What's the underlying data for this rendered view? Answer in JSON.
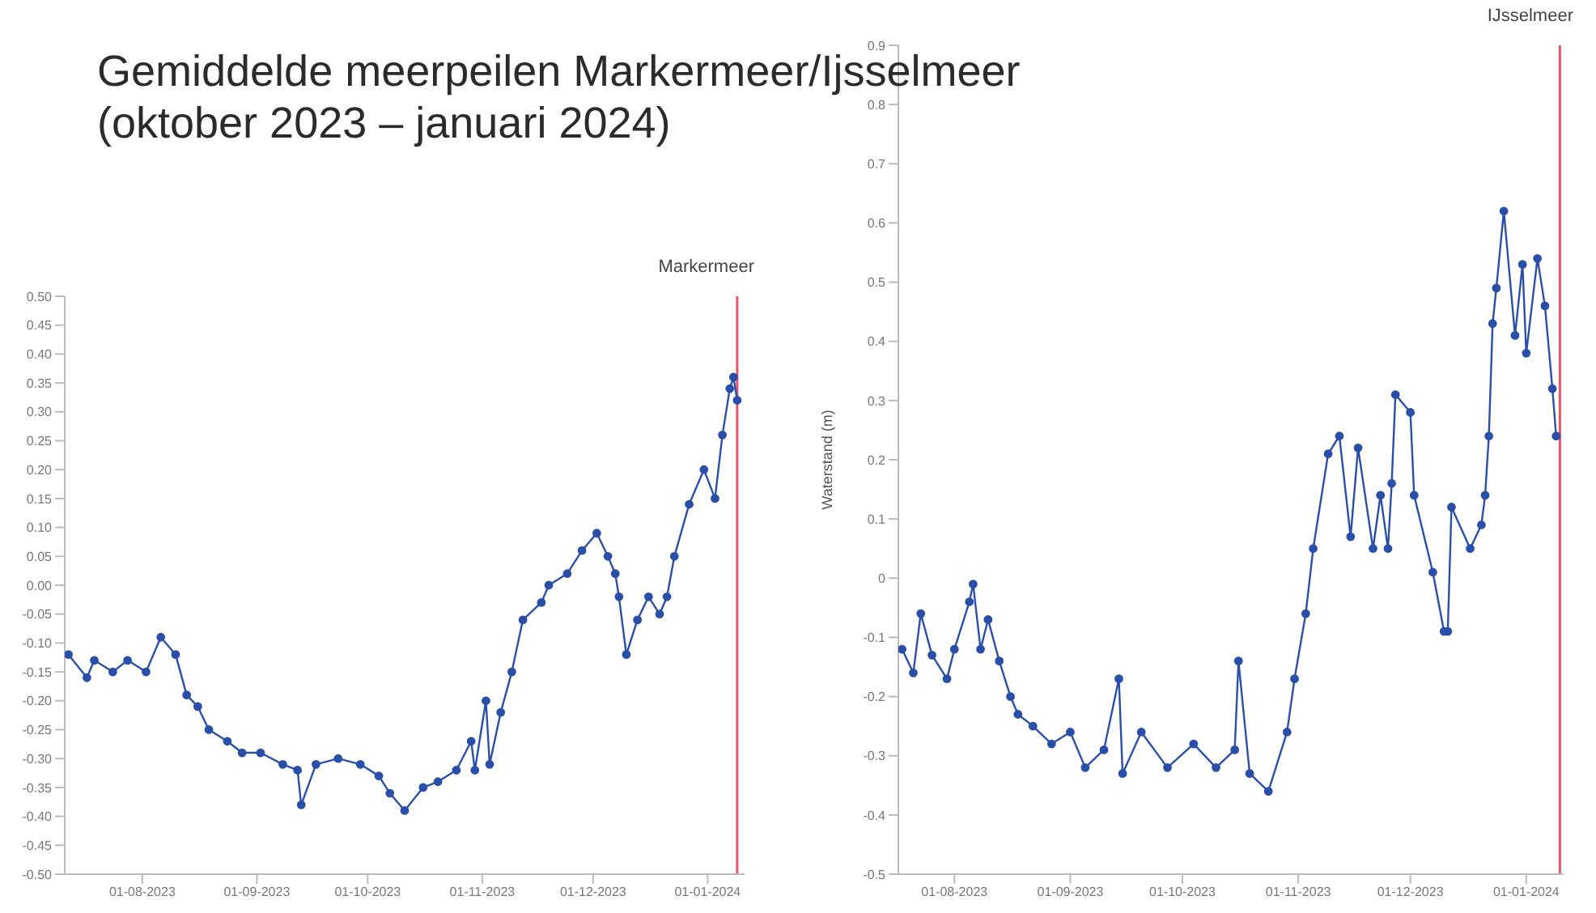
{
  "chart_data": [
    {
      "type": "line",
      "title": "Gemiddelde meerpeilen Markermeer/Ijsselmeer (oktober 2023 – januari 2024)",
      "subtitle": "Markermeer",
      "marker": "circle",
      "xlim": [
        "2023-07-11",
        "2024-01-11"
      ],
      "xticks": [
        {
          "value": "2023-08-01",
          "label": "01-08-2023"
        },
        {
          "value": "2023-09-01",
          "label": "01-09-2023"
        },
        {
          "value": "2023-10-01",
          "label": "01-10-2023"
        },
        {
          "value": "2023-11-01",
          "label": "01-11-2023"
        },
        {
          "value": "2023-12-01",
          "label": "01-12-2023"
        },
        {
          "value": "2024-01-01",
          "label": "01-01-2024"
        }
      ],
      "ylim": [
        -0.5,
        0.5
      ],
      "yticks": [
        {
          "value": -0.5,
          "label": "-0.50"
        },
        {
          "value": -0.45,
          "label": "-0.45"
        },
        {
          "value": -0.4,
          "label": "-0.40"
        },
        {
          "value": -0.35,
          "label": "-0.35"
        },
        {
          "value": -0.3,
          "label": "-0.30"
        },
        {
          "value": -0.25,
          "label": "-0.25"
        },
        {
          "value": -0.2,
          "label": "-0.20"
        },
        {
          "value": -0.15,
          "label": "-0.15"
        },
        {
          "value": -0.1,
          "label": "-0.10"
        },
        {
          "value": -0.05,
          "label": "-0.05"
        },
        {
          "value": 0,
          "label": "0.00"
        },
        {
          "value": 0.05,
          "label": "0.05"
        },
        {
          "value": 0.1,
          "label": "0.10"
        },
        {
          "value": 0.15,
          "label": "0.15"
        },
        {
          "value": 0.2,
          "label": "0.20"
        },
        {
          "value": 0.25,
          "label": "0.25"
        },
        {
          "value": 0.3,
          "label": "0.30"
        },
        {
          "value": 0.35,
          "label": "0.35"
        },
        {
          "value": 0.4,
          "label": "0.40"
        },
        {
          "value": 0.45,
          "label": "0.45"
        },
        {
          "value": 0.5,
          "label": "0.50"
        }
      ],
      "ref_lines": [
        {
          "axis": "x",
          "value": "2024-01-09",
          "color": "#e8526a"
        }
      ],
      "series": [
        {
          "color": "#2a4fa8",
          "x": [
            "2023-07-12",
            "2023-07-17",
            "2023-07-19",
            "2023-07-24",
            "2023-07-28",
            "2023-08-02",
            "2023-08-06",
            "2023-08-10",
            "2023-08-13",
            "2023-08-16",
            "2023-08-19",
            "2023-08-24",
            "2023-08-28",
            "2023-09-02",
            "2023-09-08",
            "2023-09-12",
            "2023-09-13",
            "2023-09-17",
            "2023-09-23",
            "2023-09-29",
            "2023-10-04",
            "2023-10-07",
            "2023-10-11",
            "2023-10-16",
            "2023-10-20",
            "2023-10-25",
            "2023-10-29",
            "2023-10-30",
            "2023-11-02",
            "2023-11-03",
            "2023-11-06",
            "2023-11-09",
            "2023-11-12",
            "2023-11-17",
            "2023-11-19",
            "2023-11-24",
            "2023-11-28",
            "2023-12-02",
            "2023-12-05",
            "2023-12-07",
            "2023-12-08",
            "2023-12-10",
            "2023-12-13",
            "2023-12-16",
            "2023-12-19",
            "2023-12-21",
            "2023-12-23",
            "2023-12-27",
            "2023-12-31",
            "2024-01-03",
            "2024-01-05",
            "2024-01-07",
            "2024-01-08",
            "2024-01-09"
          ],
          "values": [
            -0.12,
            -0.16,
            -0.13,
            -0.15,
            -0.13,
            -0.15,
            -0.09,
            -0.12,
            -0.19,
            -0.21,
            -0.25,
            -0.27,
            -0.29,
            -0.29,
            -0.31,
            -0.32,
            -0.38,
            -0.31,
            -0.3,
            -0.31,
            -0.33,
            -0.36,
            -0.39,
            -0.35,
            -0.34,
            -0.32,
            -0.27,
            -0.32,
            -0.2,
            -0.31,
            -0.22,
            -0.15,
            -0.06,
            -0.03,
            0,
            0.02,
            0.06,
            0.09,
            0.05,
            0.02,
            -0.02,
            -0.12,
            -0.06,
            -0.02,
            -0.05,
            -0.02,
            0.05,
            0.14,
            0.2,
            0.15,
            0.26,
            0.34,
            0.36,
            0.32
          ]
        }
      ]
    },
    {
      "type": "line",
      "title": "IJsselmeer",
      "ylabel": "Waterstand (m)",
      "marker": "circle",
      "xlim": [
        "2023-07-17",
        "2024-01-11"
      ],
      "xticks": [
        {
          "value": "2023-08-01",
          "label": "01-08-2023"
        },
        {
          "value": "2023-09-01",
          "label": "01-09-2023"
        },
        {
          "value": "2023-10-01",
          "label": "01-10-2023"
        },
        {
          "value": "2023-11-01",
          "label": "01-11-2023"
        },
        {
          "value": "2023-12-01",
          "label": "01-12-2023"
        },
        {
          "value": "2024-01-01",
          "label": "01-01-2024"
        }
      ],
      "ylim": [
        -0.5,
        0.9
      ],
      "yticks": [
        -0.5,
        -0.4,
        -0.3,
        -0.2,
        -0.1,
        0,
        0.1,
        0.2,
        0.3,
        0.4,
        0.5,
        0.6,
        0.7,
        0.8,
        0.9
      ],
      "ref_lines": [
        {
          "axis": "x",
          "value": "2024-01-10",
          "color": "#e8526a"
        }
      ],
      "series": [
        {
          "color": "#2a4fa8",
          "x": [
            "2023-07-18",
            "2023-07-21",
            "2023-07-23",
            "2023-07-26",
            "2023-07-30",
            "2023-08-01",
            "2023-08-05",
            "2023-08-06",
            "2023-08-08",
            "2023-08-10",
            "2023-08-13",
            "2023-08-16",
            "2023-08-18",
            "2023-08-22",
            "2023-08-27",
            "2023-09-01",
            "2023-09-05",
            "2023-09-10",
            "2023-09-14",
            "2023-09-15",
            "2023-09-20",
            "2023-09-27",
            "2023-10-04",
            "2023-10-10",
            "2023-10-15",
            "2023-10-16",
            "2023-10-19",
            "2023-10-24",
            "2023-10-29",
            "2023-10-31",
            "2023-11-03",
            "2023-11-05",
            "2023-11-09",
            "2023-11-12",
            "2023-11-15",
            "2023-11-17",
            "2023-11-21",
            "2023-11-23",
            "2023-11-25",
            "2023-11-26",
            "2023-11-27",
            "2023-12-01",
            "2023-12-02",
            "2023-12-07",
            "2023-12-10",
            "2023-12-11",
            "2023-12-12",
            "2023-12-17",
            "2023-12-20",
            "2023-12-21",
            "2023-12-22",
            "2023-12-23",
            "2023-12-24",
            "2023-12-26",
            "2023-12-29",
            "2023-12-31",
            "2024-01-01",
            "2024-01-04",
            "2024-01-06",
            "2024-01-08",
            "2024-01-09"
          ],
          "values": [
            -0.12,
            -0.16,
            -0.06,
            -0.13,
            -0.17,
            -0.12,
            -0.04,
            -0.01,
            -0.12,
            -0.07,
            -0.14,
            -0.2,
            -0.23,
            -0.25,
            -0.28,
            -0.26,
            -0.32,
            -0.29,
            -0.17,
            -0.33,
            -0.26,
            -0.32,
            -0.28,
            -0.32,
            -0.29,
            -0.14,
            -0.33,
            -0.36,
            -0.26,
            -0.17,
            -0.06,
            0.05,
            0.21,
            0.24,
            0.07,
            0.22,
            0.05,
            0.14,
            0.05,
            0.16,
            0.31,
            0.28,
            0.14,
            0.01,
            -0.09,
            -0.09,
            0.12,
            0.05,
            0.09,
            0.14,
            0.24,
            0.43,
            0.49,
            0.62,
            0.41,
            0.53,
            0.38,
            0.54,
            0.46,
            0.32,
            0.24
          ]
        }
      ]
    }
  ]
}
